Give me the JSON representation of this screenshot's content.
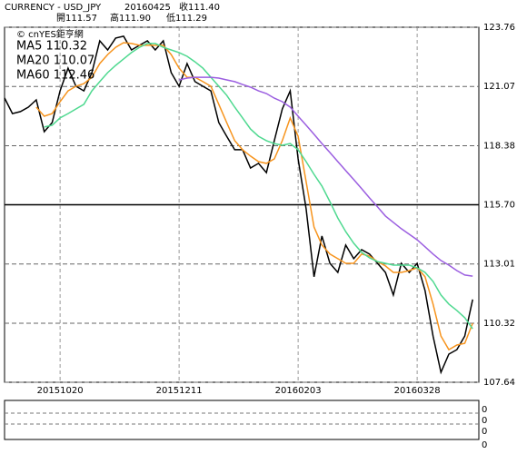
{
  "chart_data": {
    "type": "line",
    "header": {
      "symbol": "CURRENCY - USD_JPY",
      "date": "20160425",
      "close": "收111.40",
      "open": "開111.57",
      "high": "高111.90",
      "low": "低111.29"
    },
    "source": "© cnYES鉅亨網",
    "categories": [
      null,
      null,
      null,
      null,
      null,
      null,
      null,
      "20151020",
      null,
      null,
      null,
      null,
      null,
      null,
      null,
      null,
      null,
      null,
      null,
      null,
      null,
      null,
      "20151211",
      null,
      null,
      null,
      null,
      null,
      null,
      null,
      null,
      null,
      null,
      null,
      null,
      null,
      null,
      "20160203",
      null,
      null,
      null,
      null,
      null,
      null,
      null,
      null,
      null,
      null,
      null,
      null,
      null,
      null,
      "20160328",
      null,
      null,
      null,
      null,
      null,
      null,
      null
    ],
    "series": [
      {
        "name": "Close",
        "color": "#000000",
        "values": [
          120.55,
          119.84,
          119.93,
          120.13,
          120.46,
          119.02,
          119.43,
          120.87,
          121.9,
          121.08,
          120.87,
          121.7,
          123.14,
          122.73,
          123.27,
          123.35,
          122.73,
          122.94,
          123.14,
          122.73,
          123.14,
          121.7,
          121.08,
          122.11,
          121.29,
          121.08,
          120.87,
          119.43,
          118.81,
          118.2,
          118.2,
          117.37,
          117.58,
          117.16,
          118.61,
          120.05,
          120.87,
          117.78,
          115.52,
          112.43,
          114.28,
          113.04,
          112.63,
          113.87,
          113.25,
          113.66,
          113.46,
          113.04,
          112.63,
          111.6,
          113.04,
          112.63,
          113.04,
          111.8,
          109.74,
          108.09,
          108.92,
          109.12,
          109.74,
          111.4
        ]
      },
      {
        "name": "MA5 110.32",
        "color": "#f7941d",
        "values": [
          null,
          null,
          null,
          null,
          120.13,
          119.72,
          119.84,
          120.38,
          120.87,
          121.08,
          121.2,
          121.49,
          122.11,
          122.52,
          122.85,
          123.06,
          123.02,
          122.94,
          122.94,
          122.94,
          122.94,
          122.52,
          121.9,
          121.49,
          121.49,
          121.29,
          121.08,
          120.26,
          119.43,
          118.61,
          118.2,
          117.91,
          117.66,
          117.58,
          117.78,
          118.61,
          119.64,
          118.81,
          116.75,
          114.69,
          113.87,
          113.46,
          113.25,
          113.04,
          113.04,
          113.46,
          113.37,
          113.12,
          112.92,
          112.63,
          112.63,
          112.71,
          112.84,
          112.43,
          111.19,
          109.74,
          109.12,
          109.33,
          109.41,
          110.32
        ]
      },
      {
        "name": "MA20 110.07",
        "color": "#4fd990",
        "values": [
          null,
          null,
          null,
          null,
          null,
          119.23,
          119.31,
          119.64,
          119.84,
          120.05,
          120.26,
          120.87,
          121.29,
          121.7,
          122.03,
          122.32,
          122.61,
          122.85,
          123.02,
          123.02,
          122.85,
          122.73,
          122.61,
          122.44,
          122.19,
          121.9,
          121.49,
          121.08,
          120.67,
          120.13,
          119.64,
          119.14,
          118.81,
          118.61,
          118.48,
          118.4,
          118.48,
          118.2,
          117.66,
          117.08,
          116.55,
          115.84,
          115.1,
          114.48,
          113.95,
          113.54,
          113.29,
          113.12,
          113.04,
          112.96,
          112.96,
          112.96,
          112.84,
          112.63,
          112.22,
          111.6,
          111.19,
          110.9,
          110.57,
          110.07
        ]
      },
      {
        "name": "MA60 112.46",
        "color": "#9b5ee0",
        "values": [
          null,
          null,
          null,
          null,
          null,
          null,
          null,
          null,
          null,
          null,
          null,
          null,
          null,
          null,
          null,
          null,
          null,
          null,
          null,
          null,
          null,
          null,
          121.37,
          121.45,
          121.49,
          121.49,
          121.49,
          121.45,
          121.37,
          121.29,
          121.16,
          121.04,
          120.87,
          120.75,
          120.54,
          120.38,
          120.13,
          119.72,
          119.31,
          118.9,
          118.48,
          118.07,
          117.66,
          117.25,
          116.84,
          116.43,
          116.01,
          115.6,
          115.19,
          114.9,
          114.61,
          114.36,
          114.11,
          113.79,
          113.46,
          113.17,
          112.96,
          112.71,
          112.51,
          112.46
        ]
      }
    ],
    "ylim": [
      107.64,
      123.76
    ],
    "yticks": [
      107.64,
      110.32,
      113.01,
      {
        "value": 115.7,
        "label": "115.70"
      },
      118.38,
      121.07,
      123.76
    ],
    "sub_panel_labels": [
      "0",
      "0",
      "0",
      "0"
    ]
  }
}
